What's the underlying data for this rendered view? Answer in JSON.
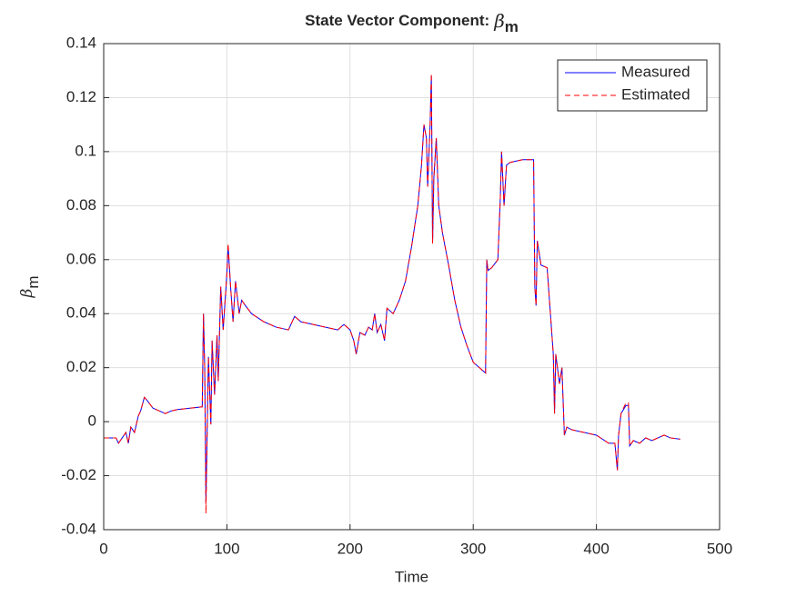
{
  "chart_data": {
    "type": "line",
    "title": "State Vector Component:",
    "title_symbol": "β",
    "title_subscript": "m",
    "xlabel": "Time",
    "ylabel": "β",
    "ylabel_subscript": "m",
    "xlim": [
      0,
      500
    ],
    "xticks": [
      0,
      100,
      200,
      300,
      400,
      500
    ],
    "ylim": [
      -0.04,
      0.14
    ],
    "yticks": [
      -0.04,
      -0.02,
      0,
      0.02,
      0.04,
      0.06,
      0.08,
      0.1,
      0.12,
      0.14
    ],
    "grid": true,
    "legend": "top-right",
    "x": [
      0,
      5,
      10,
      12,
      15,
      18,
      20,
      22,
      25,
      28,
      30,
      33,
      35,
      40,
      45,
      50,
      55,
      60,
      70,
      80,
      81,
      82,
      83,
      85,
      87,
      88,
      90,
      92,
      93,
      95,
      97,
      100,
      101,
      103,
      105,
      107,
      110,
      112,
      115,
      120,
      130,
      140,
      150,
      155,
      160,
      170,
      180,
      190,
      195,
      200,
      203,
      205,
      208,
      212,
      215,
      218,
      220,
      222,
      225,
      228,
      230,
      235,
      240,
      245,
      250,
      255,
      258,
      260,
      262,
      263,
      265,
      266,
      267,
      268,
      270,
      272,
      275,
      280,
      285,
      290,
      295,
      300,
      305,
      310,
      311,
      312,
      315,
      320,
      322,
      323,
      325,
      327,
      330,
      340,
      349,
      350,
      351,
      352,
      355,
      360,
      365,
      366,
      367,
      370,
      372,
      374,
      376,
      380,
      390,
      400,
      410,
      415,
      417,
      418,
      420,
      424,
      426,
      427,
      430,
      435,
      440,
      445,
      450,
      455,
      460,
      468
    ],
    "series": [
      {
        "name": "Measured",
        "color": "#0000ff",
        "line_style": "solid",
        "values": [
          -0.006,
          -0.006,
          -0.006,
          -0.008,
          -0.006,
          -0.004,
          -0.008,
          -0.002,
          -0.004,
          0.002,
          0.004,
          0.009,
          0.008,
          0.005,
          0.004,
          0.003,
          0.004,
          0.0045,
          0.005,
          0.0055,
          0.04,
          0.02,
          -0.03,
          0.024,
          -0.001,
          0.03,
          0.01,
          0.032,
          0.015,
          0.05,
          0.034,
          0.055,
          0.065,
          0.05,
          0.037,
          0.052,
          0.04,
          0.045,
          0.043,
          0.04,
          0.037,
          0.035,
          0.034,
          0.039,
          0.037,
          0.036,
          0.035,
          0.034,
          0.036,
          0.034,
          0.03,
          0.025,
          0.033,
          0.032,
          0.035,
          0.034,
          0.04,
          0.033,
          0.036,
          0.03,
          0.042,
          0.04,
          0.045,
          0.052,
          0.065,
          0.08,
          0.095,
          0.11,
          0.105,
          0.087,
          0.11,
          0.128,
          0.066,
          0.09,
          0.105,
          0.08,
          0.07,
          0.058,
          0.045,
          0.035,
          0.028,
          0.022,
          0.02,
          0.018,
          0.06,
          0.056,
          0.057,
          0.06,
          0.083,
          0.1,
          0.08,
          0.095,
          0.096,
          0.097,
          0.097,
          0.05,
          0.043,
          0.067,
          0.058,
          0.057,
          0.025,
          0.003,
          0.025,
          0.014,
          0.02,
          -0.005,
          -0.002,
          -0.003,
          -0.004,
          -0.005,
          -0.008,
          -0.008,
          -0.018,
          -0.005,
          0.003,
          0.006,
          0.006,
          -0.009,
          -0.007,
          -0.008,
          -0.006,
          -0.007,
          -0.006,
          -0.005,
          -0.006,
          -0.0065
        ]
      },
      {
        "name": "Estimated",
        "color": "#ff0000",
        "line_style": "dashed",
        "values": [
          -0.006,
          -0.006,
          -0.006,
          -0.008,
          -0.006,
          -0.004,
          -0.008,
          -0.002,
          -0.004,
          0.002,
          0.004,
          0.009,
          0.008,
          0.005,
          0.004,
          0.003,
          0.004,
          0.0045,
          0.005,
          0.0055,
          0.04,
          0.02,
          -0.034,
          0.024,
          -0.001,
          0.03,
          0.01,
          0.032,
          0.015,
          0.05,
          0.034,
          0.055,
          0.066,
          0.05,
          0.037,
          0.052,
          0.04,
          0.045,
          0.043,
          0.04,
          0.037,
          0.035,
          0.034,
          0.039,
          0.037,
          0.036,
          0.035,
          0.034,
          0.036,
          0.034,
          0.03,
          0.025,
          0.033,
          0.032,
          0.035,
          0.034,
          0.04,
          0.033,
          0.036,
          0.03,
          0.042,
          0.04,
          0.045,
          0.052,
          0.065,
          0.08,
          0.095,
          0.11,
          0.105,
          0.087,
          0.11,
          0.129,
          0.066,
          0.09,
          0.105,
          0.08,
          0.07,
          0.058,
          0.045,
          0.035,
          0.028,
          0.022,
          0.02,
          0.018,
          0.06,
          0.056,
          0.057,
          0.06,
          0.083,
          0.1,
          0.08,
          0.095,
          0.096,
          0.097,
          0.097,
          0.05,
          0.043,
          0.067,
          0.058,
          0.057,
          0.025,
          0.003,
          0.025,
          0.014,
          0.02,
          -0.005,
          -0.002,
          -0.003,
          -0.004,
          -0.005,
          -0.008,
          -0.008,
          -0.018,
          -0.005,
          0.003,
          0.007,
          0.007,
          -0.009,
          -0.007,
          -0.008,
          -0.006,
          -0.007,
          -0.006,
          -0.005,
          -0.006,
          -0.0065
        ]
      }
    ]
  }
}
